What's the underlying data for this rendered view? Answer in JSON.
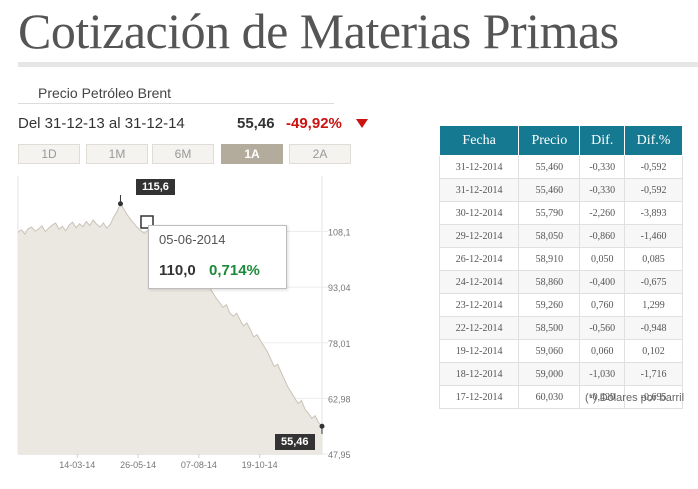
{
  "page": {
    "title": "Cotización de Materias Primas"
  },
  "sub_header": {
    "label": "Precio Petróleo Brent"
  },
  "summary": {
    "range": "Del 31-12-13 al 31-12-14",
    "price": "55,46",
    "change": "-49,92%"
  },
  "range_tabs": [
    {
      "label": "1D",
      "active": false
    },
    {
      "label": "1M",
      "active": false
    },
    {
      "label": "6M",
      "active": false
    },
    {
      "label": "1A",
      "active": true
    },
    {
      "label": "2A",
      "active": false
    }
  ],
  "tooltip": {
    "date": "05-06-2014",
    "value": "110,0",
    "change": "0,714%"
  },
  "flags": {
    "max": "115,6",
    "last": "55,46"
  },
  "colors": {
    "accent": "#157a91",
    "negative": "#cc1111",
    "positive": "#1b8a3a",
    "area_fill": "#ebe7e1",
    "active_tab": "#b3ab9c"
  },
  "chart_data": {
    "type": "area",
    "title": "",
    "xlabel": "",
    "ylabel": "",
    "y_ticks": [
      "108,1",
      "93,04",
      "78,01",
      "62,98",
      "47,95"
    ],
    "y_tick_values": [
      108.1,
      93.04,
      78.01,
      62.98,
      47.95
    ],
    "x_ticks": [
      "14-03-14",
      "26-05-14",
      "07-08-14",
      "19-10-14"
    ],
    "ylim": [
      47.95,
      123.1
    ],
    "grid": true,
    "series": [
      {
        "values": [
          107.9,
          108.6,
          107.4,
          108.9,
          109.3,
          108.2,
          108.8,
          109.6,
          108.1,
          109.0,
          109.8,
          110.4,
          108.7,
          109.5,
          108.3,
          109.9,
          110.6,
          109.1,
          110.2,
          109.4,
          110.8,
          109.7,
          111.2,
          110.1,
          109.3,
          110.4,
          109.0,
          110.0,
          112.0,
          113.5,
          115.6,
          114.1,
          112.6,
          111.3,
          110.2,
          109.1,
          108.3,
          107.6,
          108.4,
          107.2,
          106.5,
          107.1,
          105.9,
          106.6,
          105.2,
          104.1,
          102.9,
          101.6,
          100.8,
          101.4,
          99.6,
          98.2,
          97.0,
          97.6,
          96.1,
          94.6,
          93.1,
          91.6,
          90.1,
          88.9,
          87.6,
          88.3,
          86.1,
          85.2,
          86.0,
          84.2,
          82.6,
          83.4,
          81.6,
          79.6,
          80.2,
          78.6,
          77.1,
          75.6,
          73.6,
          71.6,
          72.2,
          70.1,
          68.1,
          66.1,
          64.6,
          63.1,
          61.6,
          62.4,
          60.1,
          59.0,
          57.6,
          58.3,
          56.4,
          55.46
        ]
      }
    ]
  },
  "table": {
    "headers": [
      "Fecha",
      "Precio",
      "Dif.",
      "Dif.%"
    ],
    "rows": [
      [
        "31-12-2014",
        "55,460",
        "-0,330",
        "-0,592"
      ],
      [
        "31-12-2014",
        "55,460",
        "-0,330",
        "-0,592"
      ],
      [
        "30-12-2014",
        "55,790",
        "-2,260",
        "-3,893"
      ],
      [
        "29-12-2014",
        "58,050",
        "-0,860",
        "-1,460"
      ],
      [
        "26-12-2014",
        "58,910",
        "0,050",
        "0,085"
      ],
      [
        "24-12-2014",
        "58,860",
        "-0,400",
        "-0,675"
      ],
      [
        "23-12-2014",
        "59,260",
        "0,760",
        "1,299"
      ],
      [
        "22-12-2014",
        "58,500",
        "-0,560",
        "-0,948"
      ],
      [
        "19-12-2014",
        "59,060",
        "0,060",
        "0,102"
      ],
      [
        "18-12-2014",
        "59,000",
        "-1,030",
        "-1,716"
      ],
      [
        "17-12-2014",
        "60,030",
        "-0,420",
        "-0,695"
      ]
    ]
  },
  "footnote": "(*) Dólares por barril"
}
